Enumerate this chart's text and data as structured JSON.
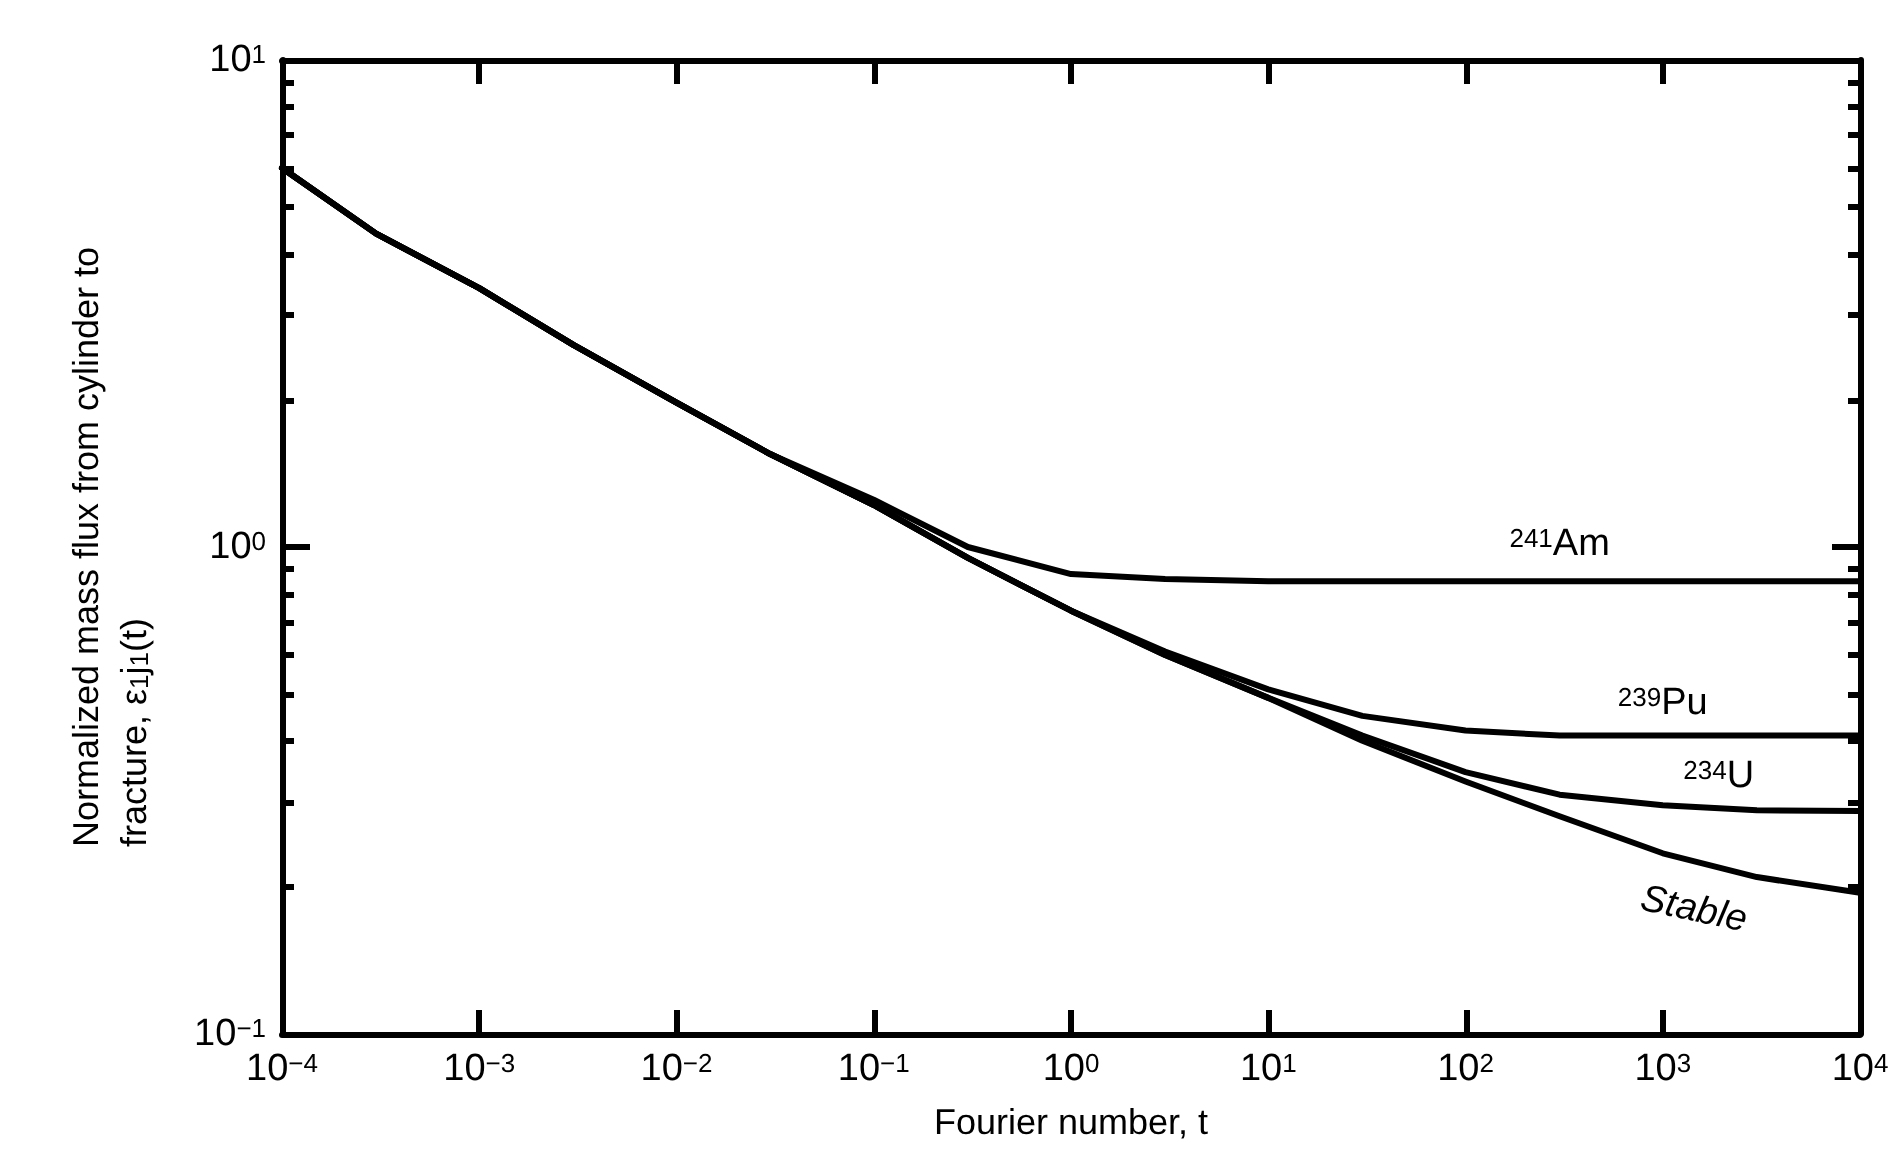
{
  "chart_data": {
    "type": "line",
    "xlabel": "Fourier number, t",
    "ylabel": "Normalized mass flux from cylinder to fracture, ε$_{1}$j$_{1}$(t)",
    "x": [
      0.0001,
      0.0003,
      0.001,
      0.003,
      0.01,
      0.03,
      0.1,
      0.3,
      1,
      3,
      10,
      30,
      100,
      300,
      1000,
      3000,
      10000
    ],
    "series": [
      {
        "name": "$^{241}$Am",
        "color": "#000000",
        "values": [
          6.0,
          4.4,
          3.4,
          2.6,
          1.98,
          1.55,
          1.25,
          1.0,
          0.88,
          0.86,
          0.85,
          0.85,
          0.85,
          0.85,
          0.85,
          0.85,
          0.85
        ]
      },
      {
        "name": "$^{239}$Pu",
        "color": "#000000",
        "values": [
          6.0,
          4.4,
          3.4,
          2.6,
          1.98,
          1.55,
          1.22,
          0.95,
          0.74,
          0.61,
          0.51,
          0.45,
          0.42,
          0.41,
          0.41,
          0.41,
          0.41
        ]
      },
      {
        "name": "$^{234}$U",
        "color": "#000000",
        "values": [
          6.0,
          4.4,
          3.4,
          2.6,
          1.98,
          1.55,
          1.22,
          0.95,
          0.74,
          0.6,
          0.49,
          0.41,
          0.345,
          0.31,
          0.295,
          0.288,
          0.287
        ]
      },
      {
        "name": "Stable",
        "color": "#000000",
        "values": [
          6.0,
          4.4,
          3.4,
          2.6,
          1.98,
          1.55,
          1.22,
          0.95,
          0.74,
          0.6,
          0.49,
          0.4,
          0.33,
          0.28,
          0.235,
          0.21,
          0.195
        ]
      }
    ],
    "log": "xy",
    "xlim": [
      0.0001,
      10000
    ],
    "ylim": [
      0.1,
      10
    ],
    "xticks": [
      {
        "value": 0.0001,
        "label": "10$^{−4}$"
      },
      {
        "value": 0.001,
        "label": "10$^{−3}$"
      },
      {
        "value": 0.01,
        "label": "10$^{−2}$"
      },
      {
        "value": 0.1,
        "label": "10$^{−1}$"
      },
      {
        "value": 1,
        "label": "10$^{0}$"
      },
      {
        "value": 10,
        "label": "10$^{1}$"
      },
      {
        "value": 100,
        "label": "10$^{2}$"
      },
      {
        "value": 1000,
        "label": "10$^{3}$"
      },
      {
        "value": 10000,
        "label": "10$^{4}$"
      }
    ],
    "yticks": [
      {
        "value": 0.1,
        "label": "10$^{−1}$"
      },
      {
        "value": 1,
        "label": "10$^{0}$"
      },
      {
        "value": 10,
        "label": "10$^{1}$"
      }
    ],
    "grid": false,
    "legend": false,
    "marker": "none",
    "line_style": "solid"
  }
}
